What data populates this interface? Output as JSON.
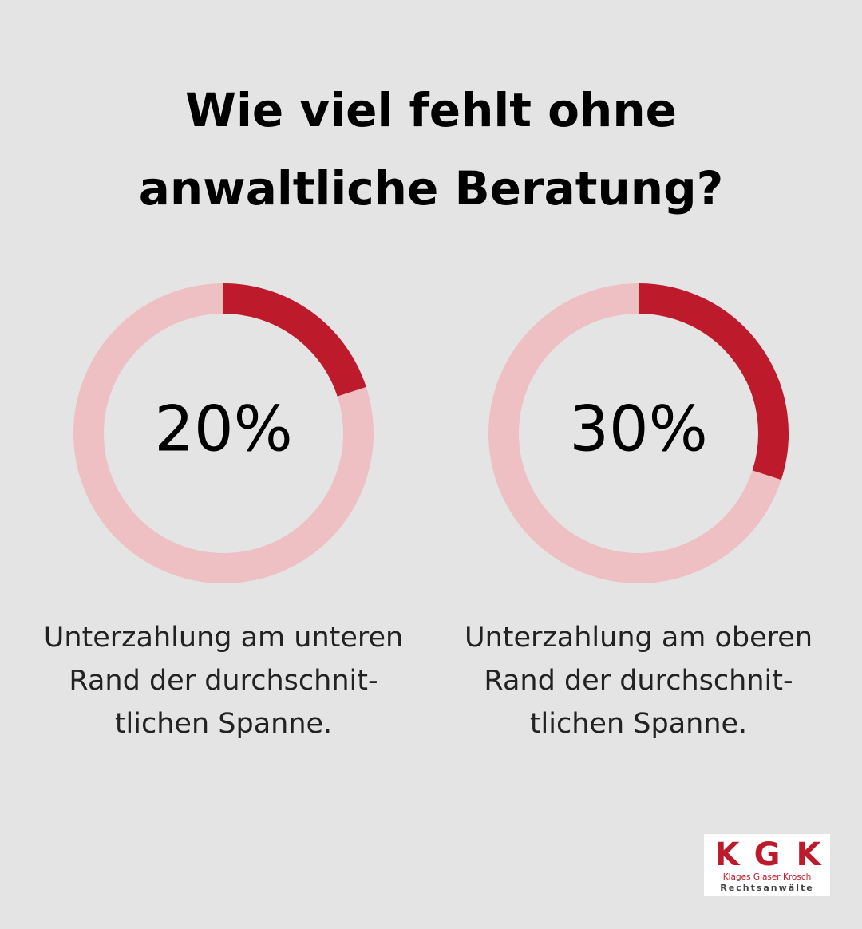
{
  "header": {
    "title": [
      "Wie viel fehlt ohne",
      "anwaltliche Beratung?"
    ]
  },
  "chart_data": [
    {
      "type": "donut",
      "values": [
        20
      ],
      "value_labels": [
        "20%"
      ],
      "color": "#bd1a2b",
      "track_color": "#eebfc3",
      "caption": [
        "Unterzahlung am unteren",
        "Rand der durchschnit-",
        "tlichen Spanne."
      ]
    },
    {
      "type": "donut",
      "values": [
        30
      ],
      "value_labels": [
        "30%"
      ],
      "color": "#bd1a2b",
      "track_color": "#eebfc3",
      "caption": [
        "Unterzahlung am oberen",
        "Rand der durchschnit-",
        "tlichen Spanne."
      ]
    }
  ],
  "logo": {
    "mark": [
      "K",
      "G",
      "K"
    ],
    "name": "Klages Glaser Krosch",
    "subtitle": "Rechtsanwälte"
  }
}
